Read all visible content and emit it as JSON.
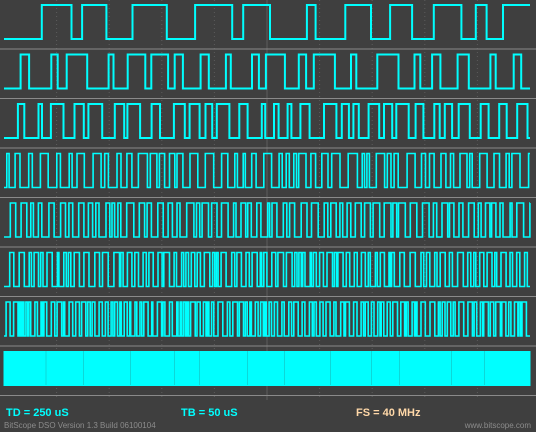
{
  "status_bar": {
    "td": "TD = 250 uS",
    "tb": "TB = 50 uS",
    "fs": "FS = 40 MHz"
  },
  "footer": {
    "version": "BitScope DSO Version 1.3 Build 06100104",
    "website": "www.bitscope.com"
  },
  "colors": {
    "background": "#3f3f3f",
    "trace": "#00ffff",
    "trace_dark": "#00d8d8",
    "grid": "#5c5c5c",
    "baseline": "#8a8a8a",
    "readout_td": "#00ffff",
    "readout_tb": "#00ffff",
    "readout_fs": "#ffd8a8",
    "footer_text": "#8c8c8c"
  },
  "logic_channels": [
    {
      "channel": 0,
      "periods": 22
    },
    {
      "channel": 1,
      "periods": 38
    },
    {
      "channel": 2,
      "periods": 60
    },
    {
      "channel": 3,
      "periods": 95
    },
    {
      "channel": 4,
      "periods": 120
    },
    {
      "channel": 5,
      "periods": 150
    },
    {
      "channel": 6,
      "periods": 180
    },
    {
      "channel": 7,
      "periods": 13
    }
  ]
}
